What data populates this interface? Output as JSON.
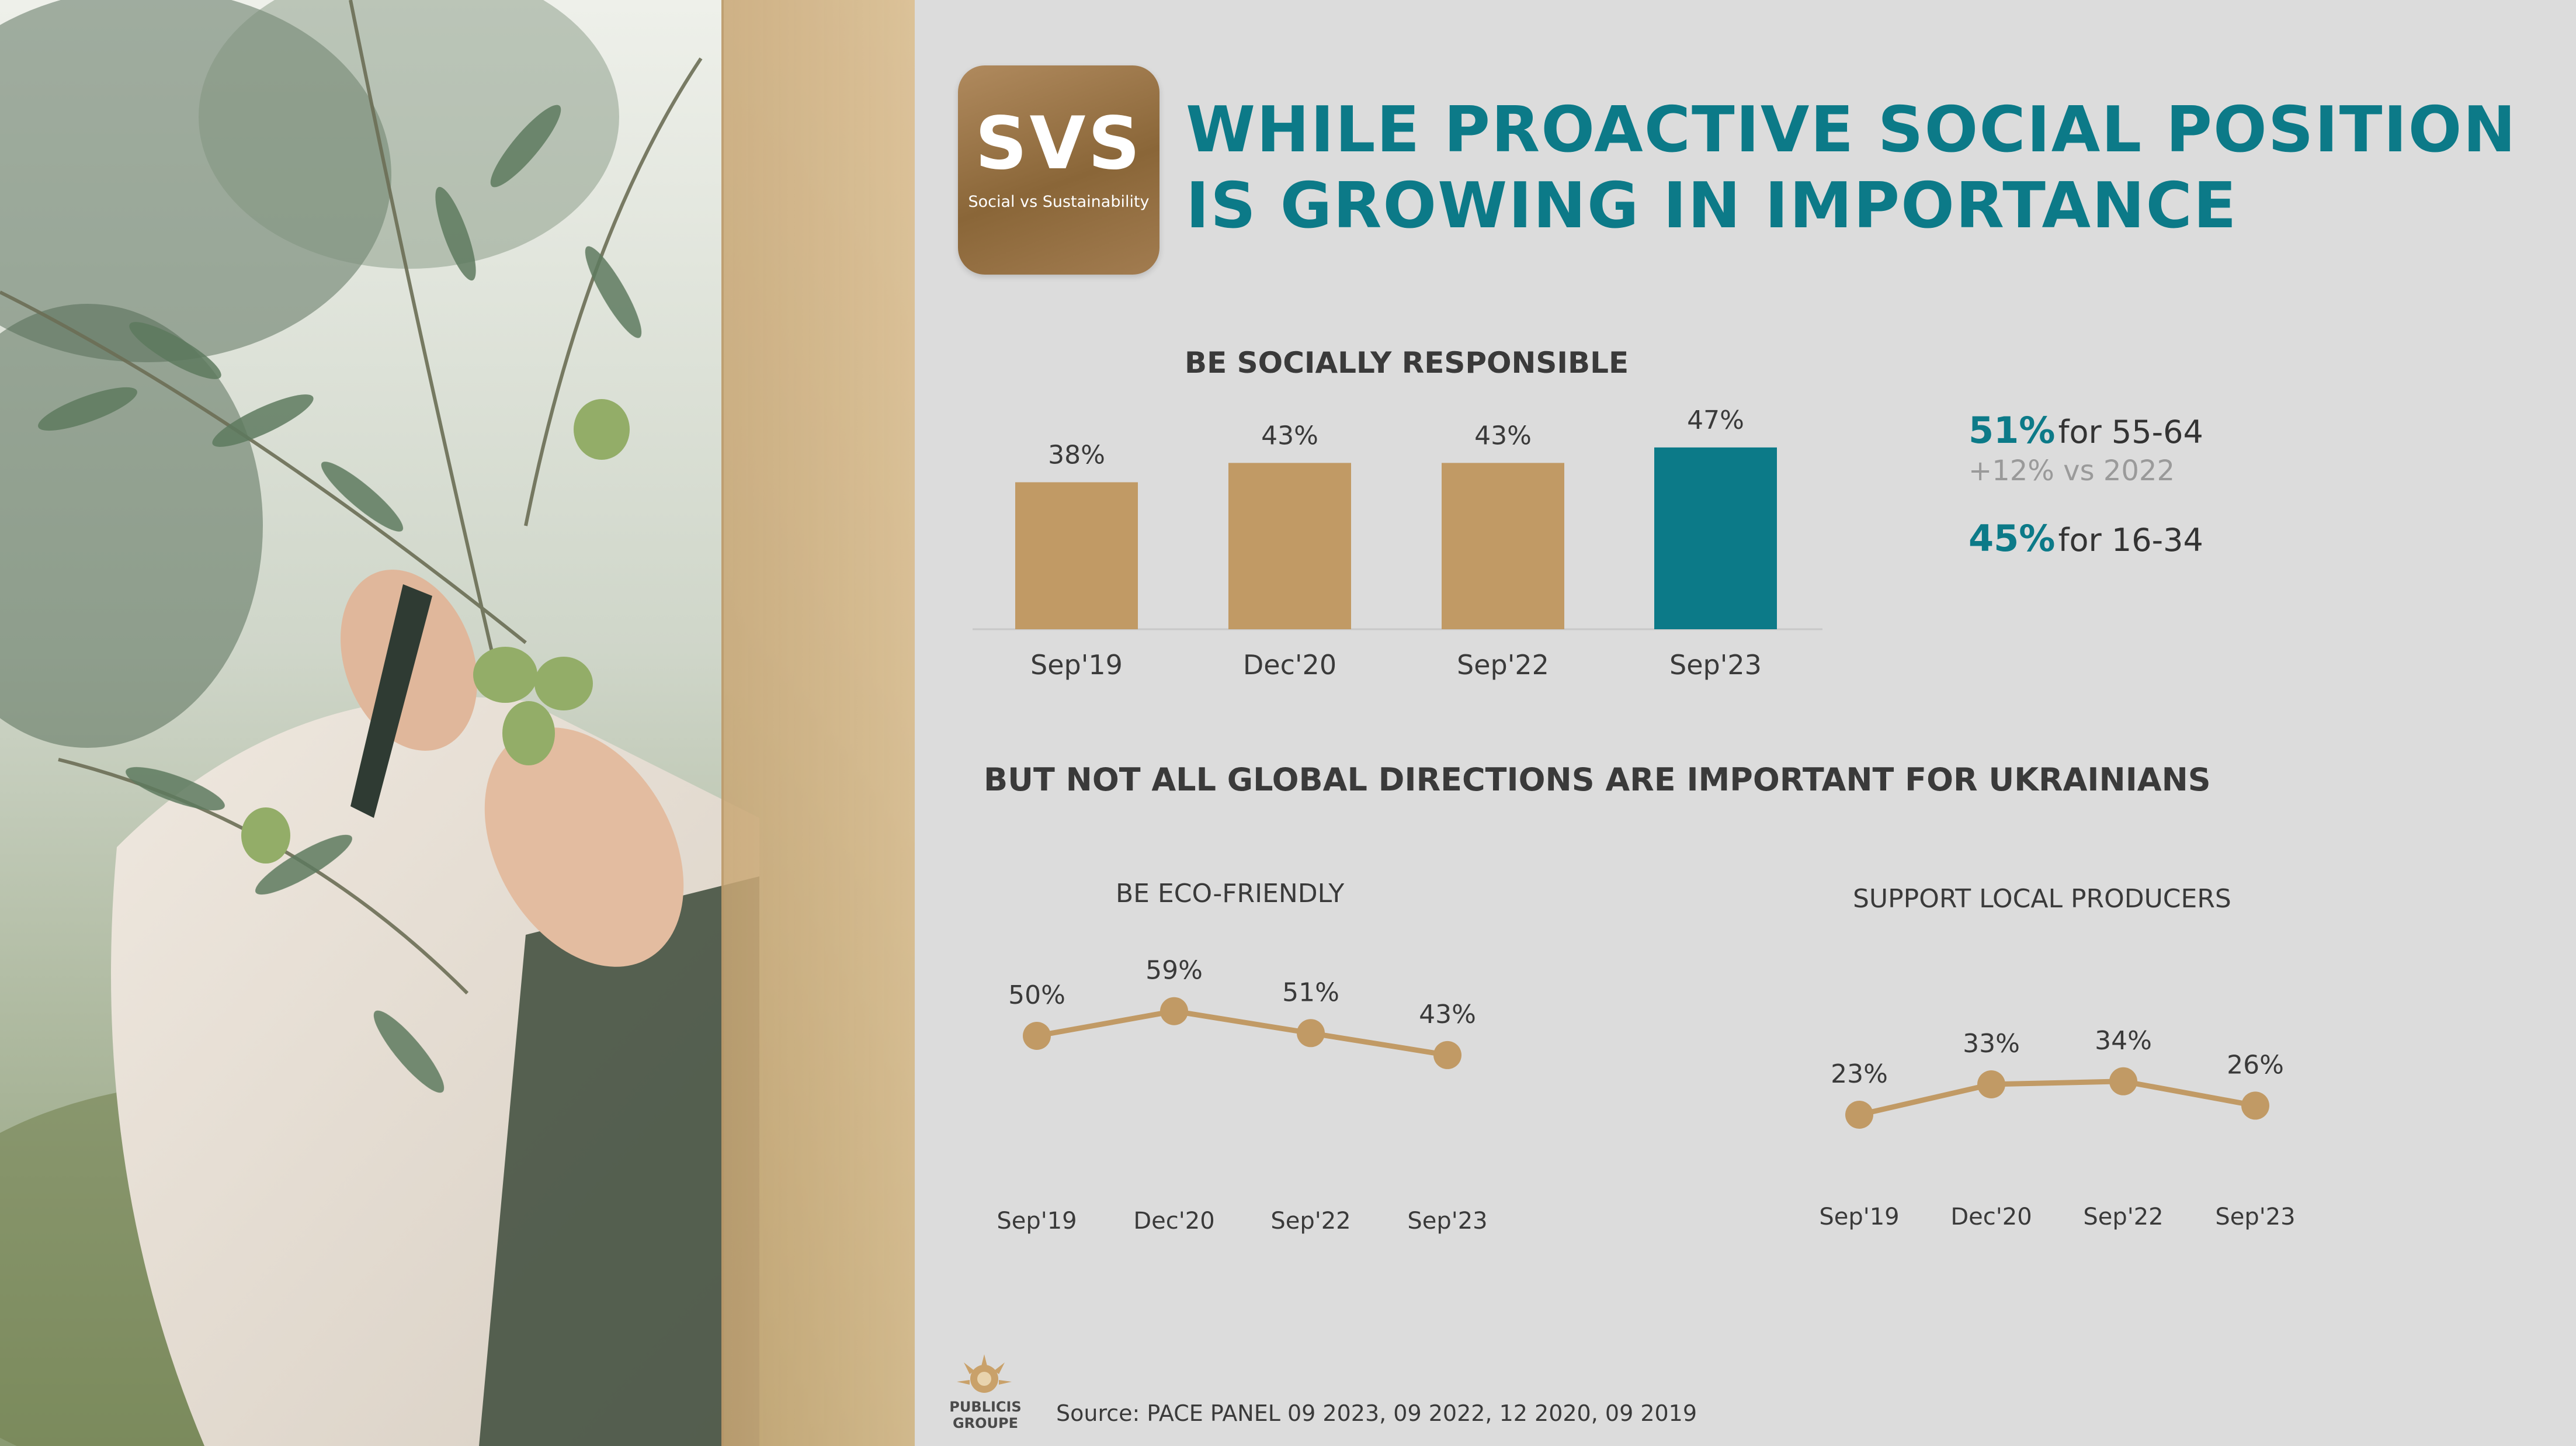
{
  "logo": {
    "text": "SVS",
    "subtitle": "Social vs Sustainability"
  },
  "title": {
    "line1": "WHILE PROACTIVE SOCIAL POSITION",
    "line2": "IS GROWING IN IMPORTANCE"
  },
  "stats": {
    "first_value": "51%",
    "first_label": "for 55-64",
    "first_sub": "+12% vs 2022",
    "second_value": "45%",
    "second_label": "for 16-34"
  },
  "section2_title": "BUT NOT ALL GLOBAL DIRECTIONS ARE IMPORTANT FOR UKRAINIANS",
  "source": "Source: PACE PANEL 09 2023, 09 2022, 12 2020, 09 2019",
  "publicis": {
    "line1": "PUBLICIS",
    "line2": "GROUPE"
  },
  "colors": {
    "teal": "#0c7a88",
    "gold": "#c19a65",
    "background": "#dcdcdc"
  },
  "chart_data": [
    {
      "type": "bar",
      "title": "BE SOCIALLY RESPONSIBLE",
      "categories": [
        "Sep'19",
        "Dec'20",
        "Sep'22",
        "Sep'23"
      ],
      "values": [
        38,
        43,
        43,
        47
      ],
      "labels": [
        "38%",
        "43%",
        "43%",
        "47%"
      ],
      "highlight_index": 3,
      "unit": "%"
    },
    {
      "type": "line",
      "title": "BE ECO-FRIENDLY",
      "categories": [
        "Sep'19",
        "Dec'20",
        "Sep'22",
        "Sep'23"
      ],
      "values": [
        50,
        59,
        51,
        43
      ],
      "labels": [
        "50%",
        "59%",
        "51%",
        "43%"
      ],
      "unit": "%"
    },
    {
      "type": "line",
      "title": "SUPPORT LOCAL PRODUCERS",
      "categories": [
        "Sep'19",
        "Dec'20",
        "Sep'22",
        "Sep'23"
      ],
      "values": [
        23,
        33,
        34,
        26
      ],
      "labels": [
        "23%",
        "33%",
        "34%",
        "26%"
      ],
      "unit": "%"
    }
  ]
}
